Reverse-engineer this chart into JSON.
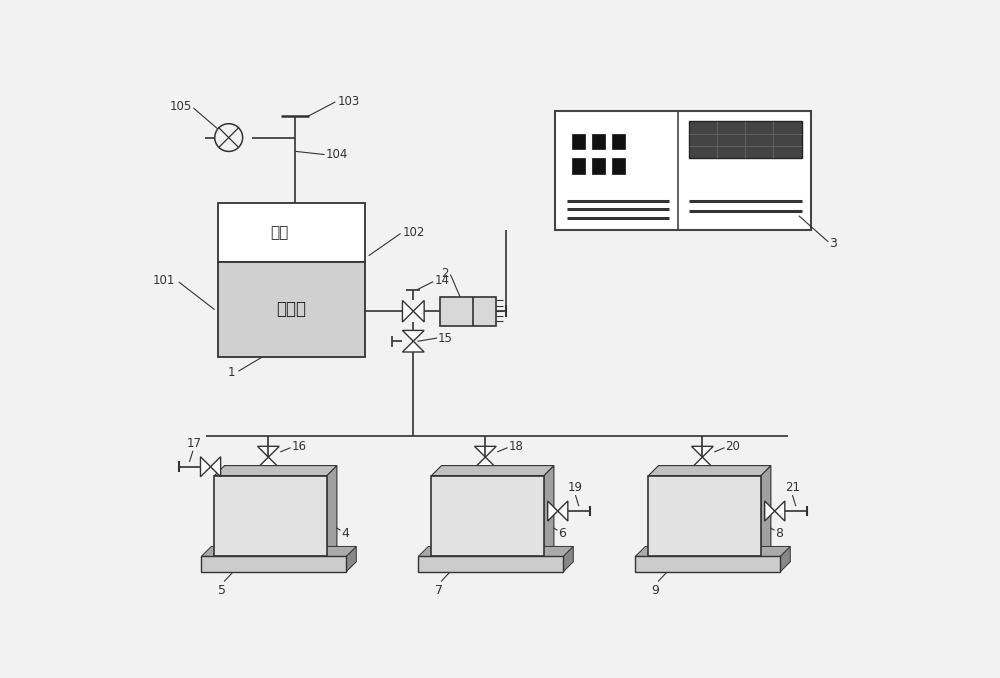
{
  "bg_color": "#f2f2f2",
  "line_color": "#333333",
  "box_fill_light": "#e0e0e0",
  "box_fill_white": "#ffffff",
  "box_fill_oil": "#d0d0d0",
  "box_side_dark": "#999999",
  "box_top_mid": "#bbbbbb",
  "base_front": "#c8c8c8",
  "base_side": "#888888",
  "base_top": "#aaaaaa",
  "screen_fill": "#555555"
}
